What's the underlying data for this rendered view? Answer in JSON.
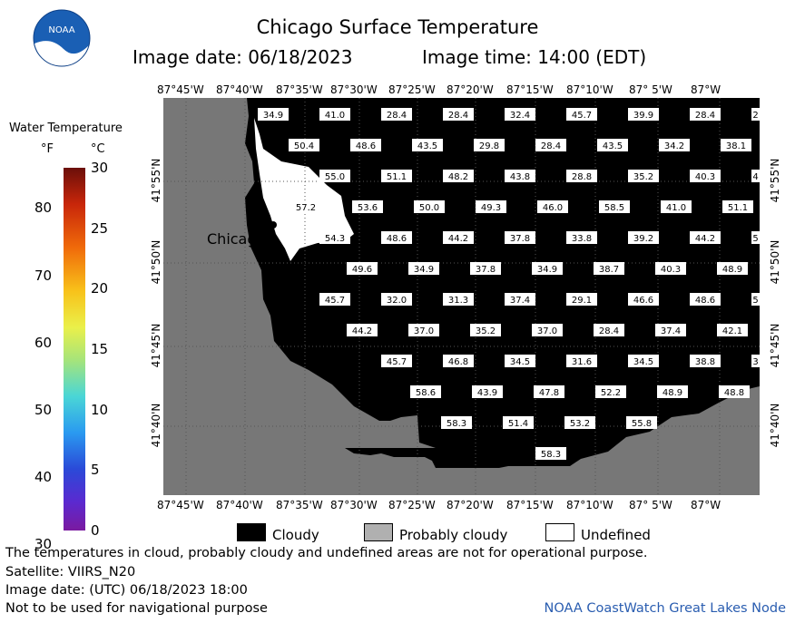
{
  "header": {
    "title": "Chicago Surface Temperature",
    "image_date": "Image date: 06/18/2023",
    "image_time": "Image time: 14:00 (EDT)"
  },
  "logo": {
    "text": "NOAA"
  },
  "colorbar": {
    "title": "Water Temperature",
    "unit_f": "°F",
    "unit_c": "°C",
    "f_ticks": [
      "30",
      "40",
      "50",
      "60",
      "70",
      "80"
    ],
    "c_ticks": [
      "0",
      "5",
      "10",
      "15",
      "20",
      "25",
      "30"
    ]
  },
  "axes": {
    "lon_labels": [
      "87°45'W",
      "87°40'W",
      "87°35'W",
      "87°30'W",
      "87°25'W",
      "87°20'W",
      "87°15'W",
      "87°10'W",
      "87° 5'W",
      "87°W"
    ],
    "lat_labels": [
      "41°55'N",
      "41°50'N",
      "41°45'N",
      "41°40'N"
    ]
  },
  "map": {
    "city_label": "Chicago",
    "colors": {
      "land": "#777777",
      "cloud": "#000000",
      "undefined": "#ffffff"
    },
    "temperatures": [
      {
        "row": 0,
        "values": [
          "34.9",
          "41.0",
          "28.4",
          "28.4",
          "32.4",
          "45.7",
          "39.9",
          "28.4",
          "2"
        ]
      },
      {
        "row": 1,
        "values": [
          "50.4",
          "48.6",
          "43.5",
          "29.8",
          "28.4",
          "43.5",
          "34.2",
          "38.1"
        ]
      },
      {
        "row": 2,
        "values": [
          "55.0",
          "51.1",
          "48.2",
          "43.8",
          "28.8",
          "35.2",
          "40.3",
          "4"
        ]
      },
      {
        "row": 3,
        "values": [
          "57.2",
          "53.6",
          "50.0",
          "49.3",
          "46.0",
          "58.5",
          "41.0",
          "51.1"
        ]
      },
      {
        "row": 4,
        "values": [
          "54.3",
          "48.6",
          "44.2",
          "37.8",
          "33.8",
          "39.2",
          "44.2",
          "5"
        ]
      },
      {
        "row": 5,
        "values": [
          "49.6",
          "34.9",
          "37.8",
          "34.9",
          "38.7",
          "40.3",
          "48.9"
        ]
      },
      {
        "row": 6,
        "values": [
          "45.7",
          "32.0",
          "31.3",
          "37.4",
          "29.1",
          "46.6",
          "48.6",
          "5"
        ]
      },
      {
        "row": 7,
        "values": [
          "44.2",
          "37.0",
          "35.2",
          "37.0",
          "28.4",
          "37.4",
          "42.1"
        ]
      },
      {
        "row": 8,
        "values": [
          "45.7",
          "46.8",
          "34.5",
          "31.6",
          "34.5",
          "38.8",
          "3"
        ]
      },
      {
        "row": 9,
        "values": [
          "58.6",
          "43.9",
          "47.8",
          "52.2",
          "48.9",
          "48.8"
        ]
      },
      {
        "row": 10,
        "values": [
          "58.3",
          "51.4",
          "53.2",
          "55.8"
        ]
      },
      {
        "row": 11,
        "values": [
          "58.3"
        ]
      }
    ]
  },
  "legend": {
    "cloudy": "Cloudy",
    "probably_cloudy": "Probably cloudy",
    "undefined": "Undefined"
  },
  "footer": {
    "disclaimer": "The temperatures in cloud, probably cloudy and undefined areas are not for operational purpose.",
    "satellite": "Satellite: VIIRS_N20",
    "utc_date": "Image date: (UTC) 06/18/2023  18:00",
    "nav_warning": "Not to be used for navigational purpose",
    "credit": "NOAA CoastWatch Great Lakes Node"
  }
}
